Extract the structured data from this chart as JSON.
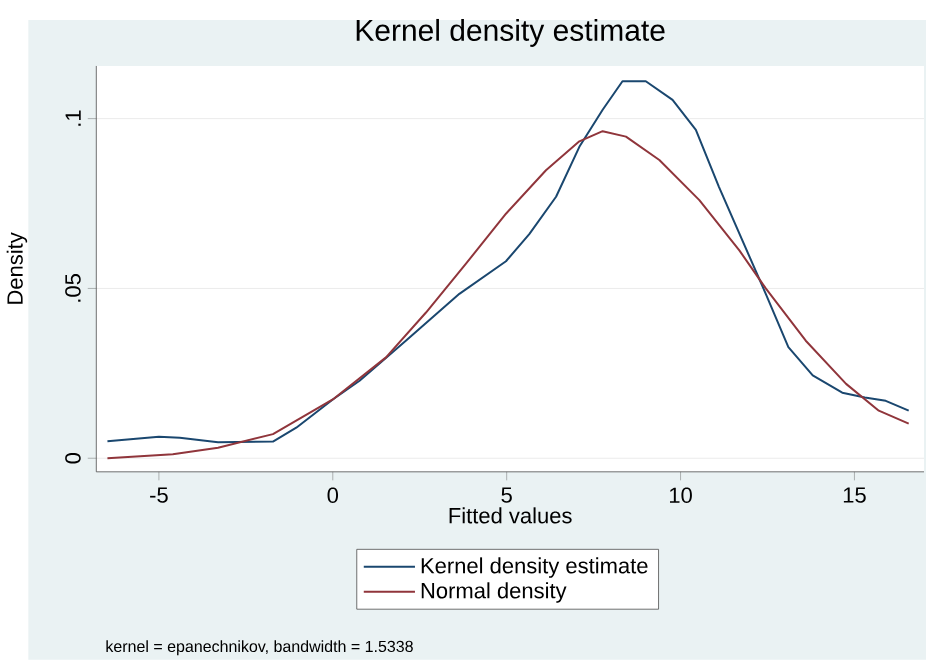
{
  "chart_data": {
    "type": "line",
    "title": "Kernel density estimate",
    "xlabel": "Fitted values",
    "ylabel": "Density",
    "xlim": [
      -6.8,
      17
    ],
    "ylim": [
      -0.004,
      0.1155
    ],
    "xticks": [
      -5,
      0,
      5,
      10,
      15
    ],
    "yticks": [
      0,
      {
        "value": 0.05,
        "label": ".05"
      },
      {
        "value": 0.1,
        "label": ".1"
      }
    ],
    "grid": "y",
    "legend": "bottom",
    "marker": "none",
    "line_style": "solid",
    "annotations": [
      "kernel = epanechnikov, bandwidth = 1.5338"
    ],
    "series": [
      {
        "name": "Kernel density estimate",
        "color": "#1a476f",
        "x": [
          -6.48,
          -5.0,
          -4.4,
          -3.3,
          -1.72,
          -1.05,
          0,
          0.77,
          2.1,
          3.64,
          4.98,
          5.65,
          6.42,
          7.09,
          7.76,
          8.33,
          9.0,
          9.77,
          10.44,
          11.1,
          12.45,
          13.1,
          13.8,
          14.65,
          15.3,
          15.9,
          16.56
        ],
        "values": [
          0.005,
          0.0063,
          0.006,
          0.0047,
          0.0049,
          0.009,
          0.0173,
          0.0228,
          0.0346,
          0.0484,
          0.058,
          0.066,
          0.077,
          0.0917,
          0.1026,
          0.111,
          0.111,
          0.1055,
          0.0967,
          0.08,
          0.0484,
          0.0327,
          0.0244,
          0.0193,
          0.0179,
          0.0169,
          0.014
        ]
      },
      {
        "name": "Normal density",
        "color": "#90353b",
        "x": [
          -6.48,
          -4.6,
          -3.3,
          -1.72,
          0,
          1.53,
          2.68,
          3.83,
          4.98,
          6.13,
          7.09,
          7.76,
          8.43,
          9.39,
          10.54,
          11.69,
          12.45,
          13.6,
          14.76,
          15.7,
          16.56
        ],
        "values": [
          0.0,
          0.0012,
          0.0031,
          0.0071,
          0.0173,
          0.0297,
          0.0429,
          0.0573,
          0.072,
          0.0848,
          0.0933,
          0.0963,
          0.0947,
          0.0878,
          0.076,
          0.0612,
          0.05,
          0.0346,
          0.0219,
          0.014,
          0.0102
        ]
      }
    ]
  }
}
